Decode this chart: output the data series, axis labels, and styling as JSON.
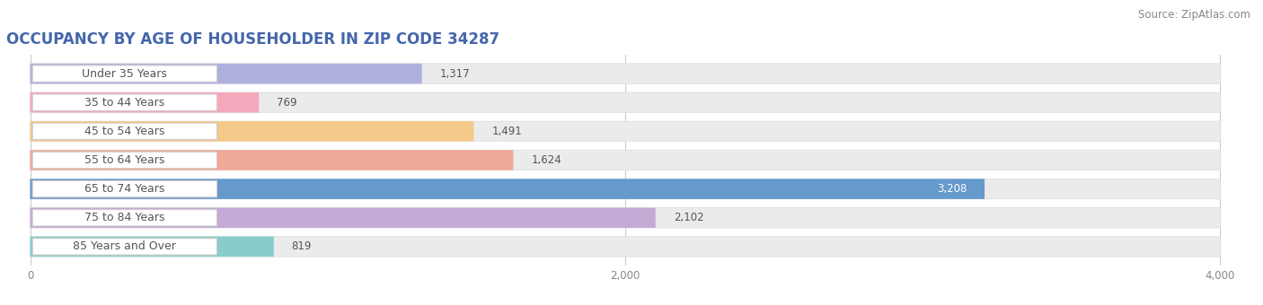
{
  "title": "OCCUPANCY BY AGE OF HOUSEHOLDER IN ZIP CODE 34287",
  "source": "Source: ZipAtlas.com",
  "categories": [
    "Under 35 Years",
    "35 to 44 Years",
    "45 to 54 Years",
    "55 to 64 Years",
    "65 to 74 Years",
    "75 to 84 Years",
    "85 Years and Over"
  ],
  "values": [
    1317,
    769,
    1491,
    1624,
    3208,
    2102,
    819
  ],
  "bar_colors": [
    "#b0b0dd",
    "#f4a8bc",
    "#f5c98a",
    "#f0a898",
    "#6699cc",
    "#c4aad4",
    "#88cccc"
  ],
  "xlim_data": 4000,
  "xticks": [
    0,
    2000,
    4000
  ],
  "background_color": "#ffffff",
  "bar_bg_color": "#ebebeb",
  "bar_row_bg": "#f5f5f5",
  "title_fontsize": 12,
  "source_fontsize": 8.5,
  "label_fontsize": 9,
  "value_fontsize": 8.5,
  "title_color": "#4466aa",
  "label_color": "#555555",
  "value_color_dark": "#555555",
  "value_color_light": "#ffffff"
}
